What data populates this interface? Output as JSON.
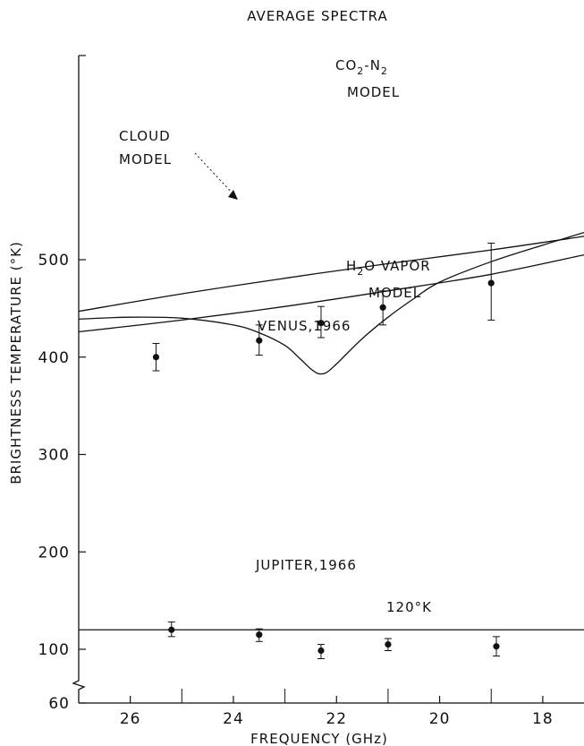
{
  "chart_data": {
    "type": "scatter",
    "title": "AVERAGE SPECTRA",
    "xlabel": "FREQUENCY (GHz)",
    "ylabel": "BRIGHTNESS TEMPERATURE (°K)",
    "x_reversed": true,
    "xlim": [
      27,
      17.2
    ],
    "ylim": [
      60,
      560
    ],
    "x_ticks": [
      "26",
      "24",
      "22",
      "20",
      "18"
    ],
    "x_tick_values": [
      26,
      24,
      22,
      20,
      18
    ],
    "x_minor_ticks": [
      25,
      23,
      21,
      19
    ],
    "y_ticks": [
      "60",
      "100",
      "200",
      "300",
      "400",
      "500"
    ],
    "y_tick_values": [
      60,
      100,
      200,
      300,
      400,
      500
    ],
    "y_axis_break": true,
    "series": [
      {
        "name": "VENUS, 1966",
        "kind": "points",
        "points": [
          {
            "x": 25.5,
            "y": 400,
            "err_low": 386,
            "err_high": 414
          },
          {
            "x": 23.5,
            "y": 417,
            "err_low": 402,
            "err_high": 433
          },
          {
            "x": 22.3,
            "y": 435,
            "err_low": 420,
            "err_high": 452
          },
          {
            "x": 21.1,
            "y": 451,
            "err_low": 433,
            "err_high": 468
          },
          {
            "x": 19.0,
            "y": 476,
            "err_low": 438,
            "err_high": 517
          }
        ]
      },
      {
        "name": "JUPITER, 1966",
        "kind": "points",
        "points": [
          {
            "x": 25.2,
            "y": 120,
            "err_low": 113,
            "err_high": 128
          },
          {
            "x": 23.5,
            "y": 115,
            "err_low": 108,
            "err_high": 121
          },
          {
            "x": 22.3,
            "y": 99,
            "err_low": 93,
            "err_high": 105
          },
          {
            "x": 21.0,
            "y": 105,
            "err_low": 99,
            "err_high": 111
          },
          {
            "x": 18.9,
            "y": 103,
            "err_low": 95,
            "err_high": 113
          }
        ]
      },
      {
        "name": "CO2-N2 MODEL",
        "kind": "curve",
        "points": [
          {
            "x": 27.0,
            "y": 447
          },
          {
            "x": 25.0,
            "y": 465
          },
          {
            "x": 23.0,
            "y": 481
          },
          {
            "x": 21.0,
            "y": 496
          },
          {
            "x": 19.0,
            "y": 510
          },
          {
            "x": 17.2,
            "y": 524
          }
        ]
      },
      {
        "name": "CLOUD MODEL",
        "kind": "curve",
        "points": [
          {
            "x": 27.0,
            "y": 426
          },
          {
            "x": 25.0,
            "y": 438
          },
          {
            "x": 23.0,
            "y": 452
          },
          {
            "x": 21.0,
            "y": 468
          },
          {
            "x": 19.0,
            "y": 485
          },
          {
            "x": 17.2,
            "y": 505
          }
        ]
      },
      {
        "name": "H2O VAPOR MODEL",
        "kind": "curve",
        "points": [
          {
            "x": 27.0,
            "y": 439
          },
          {
            "x": 26.0,
            "y": 441
          },
          {
            "x": 25.0,
            "y": 440
          },
          {
            "x": 24.0,
            "y": 433
          },
          {
            "x": 23.5,
            "y": 425
          },
          {
            "x": 23.0,
            "y": 412
          },
          {
            "x": 22.7,
            "y": 398
          },
          {
            "x": 22.5,
            "y": 388
          },
          {
            "x": 22.35,
            "y": 383
          },
          {
            "x": 22.2,
            "y": 384
          },
          {
            "x": 22.0,
            "y": 393
          },
          {
            "x": 21.5,
            "y": 419
          },
          {
            "x": 21.0,
            "y": 441
          },
          {
            "x": 20.5,
            "y": 460
          },
          {
            "x": 20.0,
            "y": 477
          },
          {
            "x": 19.0,
            "y": 498
          },
          {
            "x": 18.0,
            "y": 515
          },
          {
            "x": 17.2,
            "y": 528
          }
        ]
      },
      {
        "name": "120°K",
        "kind": "hline",
        "y": 120
      }
    ],
    "annotations": {
      "co2_line1": "CO",
      "co2_sub": "2",
      "co2_dash": "-N",
      "co2_sub2": "2",
      "co2_line2": "MODEL",
      "cloud_line1": "CLOUD",
      "cloud_line2": "MODEL",
      "h2o_h": "H",
      "h2o_sub": "2",
      "h2o_rest": "O VAPOR",
      "h2o_line2": "MODEL",
      "venus": "VENUS,1966",
      "jupiter": "JUPITER,1966",
      "k120": "120°K"
    }
  }
}
